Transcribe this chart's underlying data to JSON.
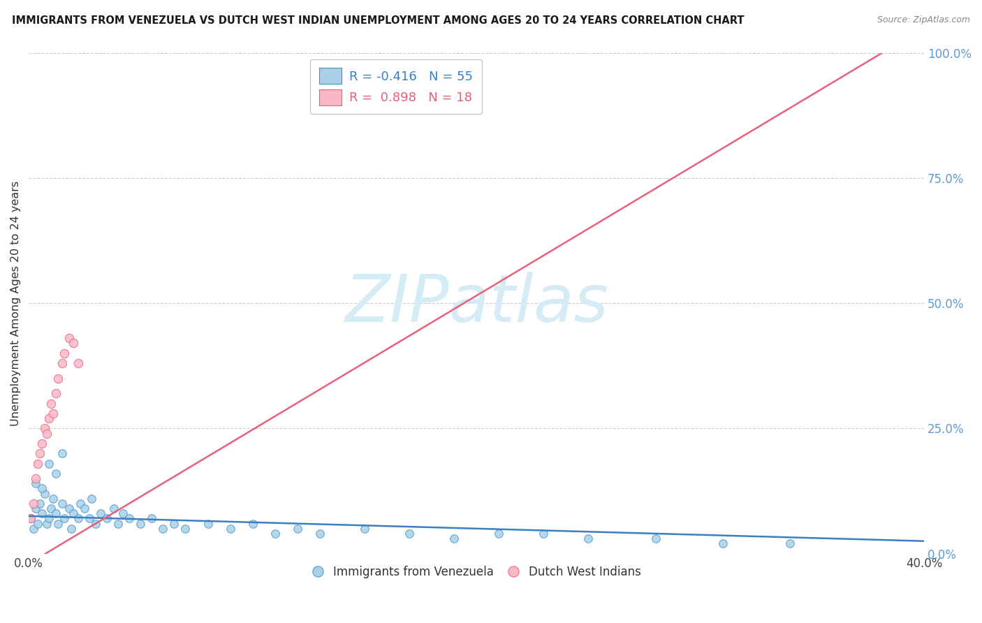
{
  "title": "IMMIGRANTS FROM VENEZUELA VS DUTCH WEST INDIAN UNEMPLOYMENT AMONG AGES 20 TO 24 YEARS CORRELATION CHART",
  "source": "Source: ZipAtlas.com",
  "ylabel": "Unemployment Among Ages 20 to 24 years",
  "right_ytick_vals": [
    1.0,
    0.75,
    0.5,
    0.25,
    0.0
  ],
  "right_ytick_labels": [
    "100.0%",
    "75.0%",
    "50.0%",
    "25.0%",
    "0.0%"
  ],
  "xlim": [
    0.0,
    0.4
  ],
  "ylim": [
    0.0,
    1.0
  ],
  "blue_R": -0.416,
  "blue_N": 55,
  "pink_R": 0.898,
  "pink_N": 18,
  "blue_color": "#a8d0e8",
  "blue_edge": "#4292c6",
  "pink_color": "#f9b8c8",
  "pink_edge": "#e8607a",
  "blue_line_color": "#3a7fc1",
  "pink_line_color": "#e8607a",
  "watermark_text": "ZIPatlas",
  "watermark_color": "#d5ecf7",
  "legend_label_blue": "Immigrants from Venezuela",
  "legend_label_pink": "Dutch West Indians",
  "blue_trend": [
    0.0,
    0.4,
    0.075,
    0.025
  ],
  "pink_trend": [
    0.0,
    0.4,
    -0.02,
    1.05
  ],
  "grid_color": "#cccccc",
  "tick_color": "#5b9bd5",
  "text_color": "#1a1a1a",
  "source_color": "#888888",
  "blue_scatter_x": [
    0.001,
    0.002,
    0.003,
    0.004,
    0.005,
    0.006,
    0.007,
    0.008,
    0.009,
    0.01,
    0.011,
    0.012,
    0.013,
    0.015,
    0.016,
    0.018,
    0.019,
    0.02,
    0.022,
    0.023,
    0.025,
    0.027,
    0.028,
    0.03,
    0.032,
    0.035,
    0.038,
    0.04,
    0.042,
    0.045,
    0.05,
    0.055,
    0.06,
    0.065,
    0.07,
    0.08,
    0.09,
    0.1,
    0.11,
    0.12,
    0.13,
    0.15,
    0.17,
    0.19,
    0.21,
    0.23,
    0.25,
    0.28,
    0.31,
    0.34,
    0.003,
    0.006,
    0.009,
    0.012,
    0.015
  ],
  "blue_scatter_y": [
    0.07,
    0.05,
    0.09,
    0.06,
    0.1,
    0.08,
    0.12,
    0.06,
    0.07,
    0.09,
    0.11,
    0.08,
    0.06,
    0.1,
    0.07,
    0.09,
    0.05,
    0.08,
    0.07,
    0.1,
    0.09,
    0.07,
    0.11,
    0.06,
    0.08,
    0.07,
    0.09,
    0.06,
    0.08,
    0.07,
    0.06,
    0.07,
    0.05,
    0.06,
    0.05,
    0.06,
    0.05,
    0.06,
    0.04,
    0.05,
    0.04,
    0.05,
    0.04,
    0.03,
    0.04,
    0.04,
    0.03,
    0.03,
    0.02,
    0.02,
    0.14,
    0.13,
    0.18,
    0.16,
    0.2
  ],
  "pink_scatter_x": [
    0.001,
    0.002,
    0.003,
    0.004,
    0.005,
    0.006,
    0.007,
    0.008,
    0.009,
    0.01,
    0.011,
    0.012,
    0.013,
    0.015,
    0.016,
    0.018,
    0.02,
    0.022
  ],
  "pink_scatter_y": [
    0.07,
    0.1,
    0.15,
    0.18,
    0.2,
    0.22,
    0.25,
    0.24,
    0.27,
    0.3,
    0.28,
    0.32,
    0.35,
    0.38,
    0.4,
    0.43,
    0.42,
    0.38
  ]
}
